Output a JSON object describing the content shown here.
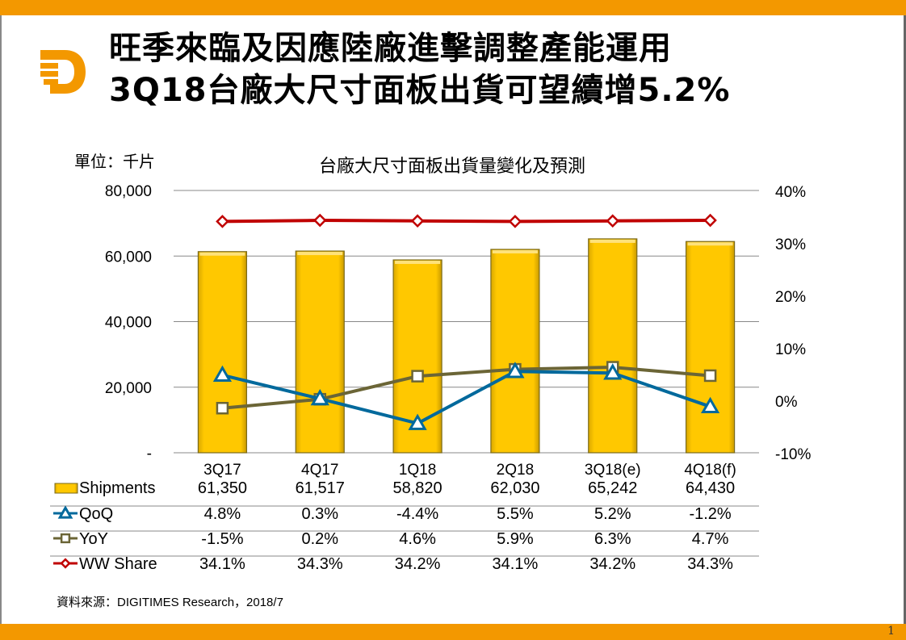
{
  "header": {
    "title_line1": "旺季來臨及因應陸廠進擊調整產能運用",
    "title_line2": "3Q18台廠大尺寸面板出貨可望續增5.2%",
    "logo_label": "D"
  },
  "colors": {
    "accent": "#F39800",
    "bar_fill": "#FFC800",
    "bar_edge": "#7A6A1A",
    "qoq": "#00699C",
    "yoy": "#6B6536",
    "ww_share": "#C00000",
    "grid": "#888888"
  },
  "unit_label": "單位：千片",
  "source": "資料來源：DIGITIMES Research，2018/7",
  "page_number": "1",
  "chart_data": {
    "type": "bar",
    "title": "台廠大尺寸面板出貨量變化及預測",
    "categories": [
      "3Q17",
      "4Q17",
      "1Q18",
      "2Q18",
      "3Q18(e)",
      "4Q18(f)"
    ],
    "y_left": {
      "range": [
        0,
        80000
      ],
      "ticks": [
        0,
        20000,
        40000,
        60000,
        80000
      ],
      "tick_labels": [
        "-",
        "20,000",
        "40,000",
        "60,000",
        "80,000"
      ]
    },
    "y_right": {
      "range": [
        -10,
        40
      ],
      "ticks": [
        -10,
        0,
        10,
        20,
        30,
        40
      ],
      "tick_labels": [
        "-10%",
        "0%",
        "10%",
        "20%",
        "30%",
        "40%"
      ]
    },
    "grid": true,
    "series": [
      {
        "name": "Shipments",
        "type": "bar",
        "axis": "left",
        "values": [
          61350,
          61517,
          58820,
          62030,
          65242,
          64430
        ],
        "labels": [
          "61,350",
          "61,517",
          "58,820",
          "62,030",
          "65,242",
          "64,430"
        ]
      },
      {
        "name": "QoQ",
        "type": "line",
        "axis": "right",
        "marker": "triangle",
        "values": [
          4.8,
          0.3,
          -4.4,
          5.5,
          5.2,
          -1.2
        ],
        "labels": [
          "4.8%",
          "0.3%",
          "-4.4%",
          "5.5%",
          "5.2%",
          "-1.2%"
        ]
      },
      {
        "name": "YoY",
        "type": "line",
        "axis": "right",
        "marker": "square",
        "values": [
          -1.5,
          0.2,
          4.6,
          5.9,
          6.3,
          4.7
        ],
        "labels": [
          "-1.5%",
          "0.2%",
          "4.6%",
          "5.9%",
          "6.3%",
          "4.7%"
        ]
      },
      {
        "name": "WW Share",
        "type": "line",
        "axis": "right",
        "marker": "diamond",
        "values": [
          34.1,
          34.3,
          34.2,
          34.1,
          34.2,
          34.3
        ],
        "labels": [
          "34.1%",
          "34.3%",
          "34.2%",
          "34.1%",
          "34.2%",
          "34.3%"
        ]
      }
    ]
  }
}
